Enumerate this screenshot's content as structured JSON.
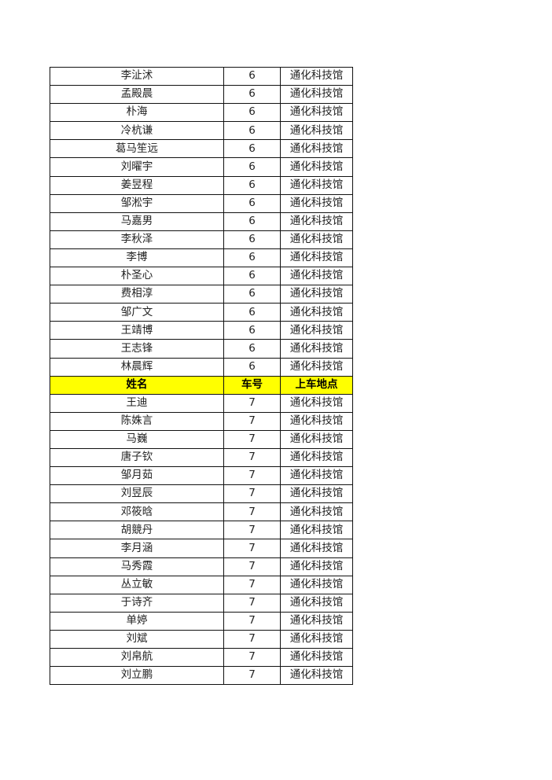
{
  "header": {
    "name": "姓名",
    "bus": "车号",
    "location": "上车地点"
  },
  "colors": {
    "header_bg": "#FFFF00"
  },
  "rows": [
    {
      "name": "李沚沭",
      "bus": "6",
      "location": "通化科技馆"
    },
    {
      "name": "孟殿晨",
      "bus": "6",
      "location": "通化科技馆"
    },
    {
      "name": "朴海",
      "bus": "6",
      "location": "通化科技馆"
    },
    {
      "name": "冷杭谦",
      "bus": "6",
      "location": "通化科技馆"
    },
    {
      "name": "葛马笙远",
      "bus": "6",
      "location": "通化科技馆"
    },
    {
      "name": "刘曜宇",
      "bus": "6",
      "location": "通化科技馆"
    },
    {
      "name": "姜昱程",
      "bus": "6",
      "location": "通化科技馆"
    },
    {
      "name": "邹淞宇",
      "bus": "6",
      "location": "通化科技馆"
    },
    {
      "name": "马嘉男",
      "bus": "6",
      "location": "通化科技馆"
    },
    {
      "name": "李秋泽",
      "bus": "6",
      "location": "通化科技馆"
    },
    {
      "name": "李博",
      "bus": "6",
      "location": "通化科技馆"
    },
    {
      "name": "朴圣心",
      "bus": "6",
      "location": "通化科技馆"
    },
    {
      "name": "费相淳",
      "bus": "6",
      "location": "通化科技馆"
    },
    {
      "name": "邹广文",
      "bus": "6",
      "location": "通化科技馆"
    },
    {
      "name": "王靖博",
      "bus": "6",
      "location": "通化科技馆"
    },
    {
      "name": "王志锋",
      "bus": "6",
      "location": "通化科技馆"
    },
    {
      "name": "林晨辉",
      "bus": "6",
      "location": "通化科技馆"
    },
    {
      "header": true
    },
    {
      "name": "王迪",
      "bus": "7",
      "location": "通化科技馆"
    },
    {
      "name": "陈姝言",
      "bus": "7",
      "location": "通化科技馆"
    },
    {
      "name": "马巍",
      "bus": "7",
      "location": "通化科技馆"
    },
    {
      "name": "唐子钦",
      "bus": "7",
      "location": "通化科技馆"
    },
    {
      "name": "邹月茹",
      "bus": "7",
      "location": "通化科技馆"
    },
    {
      "name": "刘昱辰",
      "bus": "7",
      "location": "通化科技馆"
    },
    {
      "name": "邓筱晗",
      "bus": "7",
      "location": "通化科技馆"
    },
    {
      "name": "胡競丹",
      "bus": "7",
      "location": "通化科技馆"
    },
    {
      "name": "李月涵",
      "bus": "7",
      "location": "通化科技馆"
    },
    {
      "name": "马秀霞",
      "bus": "7",
      "location": "通化科技馆"
    },
    {
      "name": "丛立敏",
      "bus": "7",
      "location": "通化科技馆"
    },
    {
      "name": "于诗齐",
      "bus": "7",
      "location": "通化科技馆"
    },
    {
      "name": "单婷",
      "bus": "7",
      "location": "通化科技馆"
    },
    {
      "name": "刘斌",
      "bus": "7",
      "location": "通化科技馆"
    },
    {
      "name": "刘帛航",
      "bus": "7",
      "location": "通化科技馆"
    },
    {
      "name": "刘立鹏",
      "bus": "7",
      "location": "通化科技馆"
    }
  ]
}
